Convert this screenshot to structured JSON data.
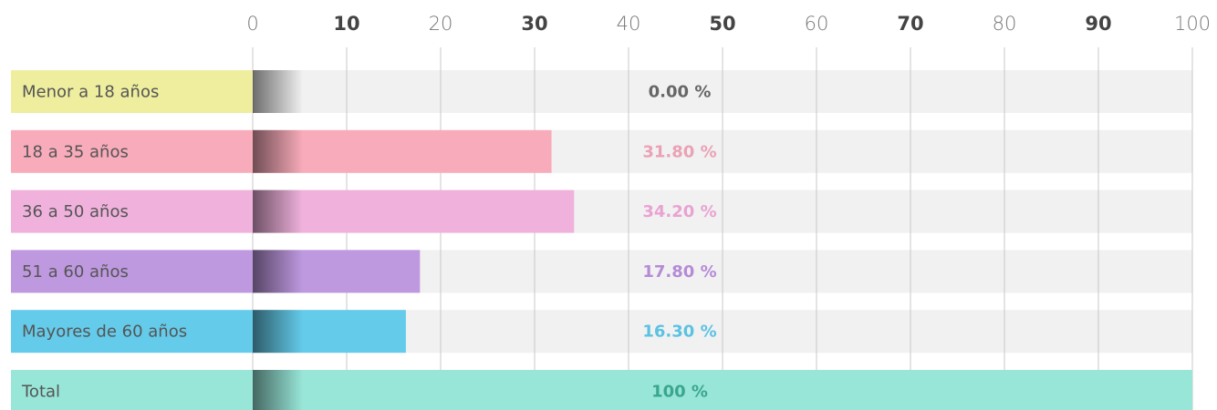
{
  "chart_data": {
    "type": "bar",
    "categories": [
      "Menor a 18 años",
      "18 a 35 años",
      "36 a 50 años",
      "51 a 60 años",
      "Mayores de 60 años",
      "Total"
    ],
    "values": [
      0,
      31.8,
      34.2,
      17.8,
      16.3,
      100
    ],
    "value_labels": [
      "0.00 %",
      "31.80 %",
      "34.20 %",
      "17.80 %",
      "16.30 %",
      "100 %"
    ],
    "colors": [
      "#eeee9e",
      "#f8abba",
      "#f0b2dd",
      "#bf99e0",
      "#64cbea",
      "#98e6d8"
    ],
    "label_colors": [
      "#666666",
      "#eaa2b6",
      "#e9a3d2",
      "#b58bd8",
      "#5cc2e2",
      "#3aa68e"
    ],
    "xlim": [
      0,
      100
    ],
    "xticks": [
      0,
      10,
      20,
      30,
      40,
      50,
      60,
      70,
      80,
      90,
      100
    ],
    "grid": true
  }
}
